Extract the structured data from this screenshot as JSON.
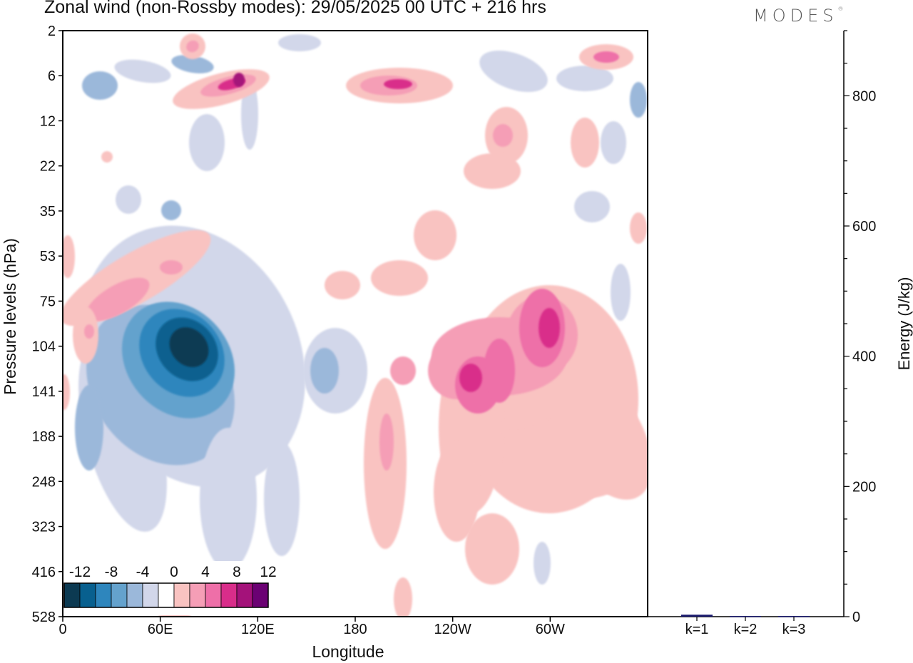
{
  "title": "Zonal wind (non-Rossby modes):  29/05/2025  00 UTC  + 216 hrs",
  "logo": "MODES",
  "chart_data": [
    {
      "type": "heatmap",
      "xlabel": "Longitude",
      "ylabel": "Pressure levels (hPa)",
      "x_ticks": [
        "0",
        "60E",
        "120E",
        "180",
        "120W",
        "60W"
      ],
      "x_tick_degrees": [
        0,
        60,
        120,
        180,
        240,
        300
      ],
      "xlim": [
        0,
        360
      ],
      "y_ticks": [
        "2",
        "6",
        "12",
        "22",
        "35",
        "53",
        "75",
        "104",
        "141",
        "188",
        "248",
        "323",
        "416",
        "528"
      ],
      "colorbar": {
        "labels": [
          "-12",
          "-8",
          "-4",
          "0",
          "4",
          "8",
          "12"
        ],
        "levels": [
          -14,
          -12,
          -10,
          -8,
          -6,
          -4,
          -2,
          2,
          4,
          6,
          8,
          10,
          12,
          14
        ],
        "colors": [
          "#0c3a52",
          "#08608f",
          "#2e86bd",
          "#64a2cd",
          "#9bb8da",
          "#d2d7ea",
          "#ffffff",
          "#f9c3c1",
          "#f59eb6",
          "#ee6fa8",
          "#d92d8a",
          "#a4127a",
          "#6b0173"
        ]
      },
      "features": [
        {
          "sign": "negative",
          "peak_ms": -14,
          "lon": 75,
          "level_hPa": 115
        },
        {
          "sign": "positive",
          "peak_ms": 9,
          "lon": 295,
          "level_hPa": 104
        },
        {
          "sign": "positive",
          "peak_ms": 8,
          "lon": 250,
          "level_hPa": 130
        },
        {
          "sign": "positive",
          "peak_ms": 8,
          "lon": 100,
          "level_hPa": 7
        },
        {
          "sign": "positive",
          "peak_ms": 7,
          "lon": 345,
          "level_hPa": 4
        },
        {
          "sign": "positive",
          "peak_ms": 6,
          "lon": 20,
          "level_hPa": 75
        }
      ]
    },
    {
      "type": "bar",
      "categories": [
        "k=1",
        "k=2",
        "k=3"
      ],
      "values": [
        3,
        1,
        1
      ],
      "ylabel": "Energy (J/kg)",
      "ylim": [
        0,
        900
      ],
      "y_ticks": [
        0,
        200,
        400,
        600,
        800
      ],
      "bar_color": "#1a1a6e"
    }
  ]
}
